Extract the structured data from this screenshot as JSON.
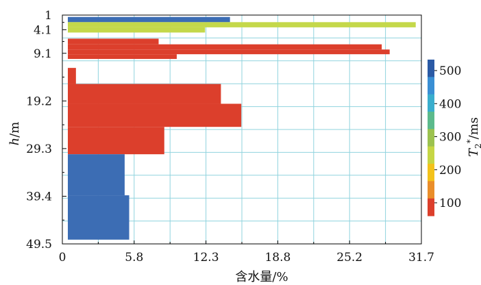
{
  "chart_data": {
    "type": "bar",
    "orientation": "horizontal",
    "xlabel": "含水量/%",
    "ylabel_italic": "h",
    "ylabel_rest": "/m",
    "xticks": [
      "0",
      "5.8",
      "12.3",
      "18.8",
      "25.2",
      "31.7"
    ],
    "xlim": [
      0,
      31.7
    ],
    "yticks": [
      "1",
      "4.1",
      "9.1",
      "19.2",
      "29.3",
      "39.4",
      "49.5"
    ],
    "ylim": [
      1,
      49.5
    ],
    "grid": true,
    "bars": [
      {
        "y0": 1.4,
        "y1": 2.5,
        "value": 14.8,
        "color": "#3c6db4",
        "t2": 500
      },
      {
        "y0": 2.5,
        "y1": 3.6,
        "value": 31.2,
        "color": "#c4d84a",
        "t2": 250
      },
      {
        "y0": 3.6,
        "y1": 4.7,
        "value": 12.6,
        "color": "#c4d84a",
        "t2": 250
      },
      {
        "y0": 6.0,
        "y1": 7.2,
        "value": 8.5,
        "color": "#dc3f2c",
        "t2": 100
      },
      {
        "y0": 7.2,
        "y1": 8.3,
        "value": 28.2,
        "color": "#dc3f2c",
        "t2": 100
      },
      {
        "y0": 8.3,
        "y1": 9.3,
        "value": 28.9,
        "color": "#dc3f2c",
        "t2": 100
      },
      {
        "y0": 9.3,
        "y1": 10.3,
        "value": 10.1,
        "color": "#dc3f2c",
        "t2": 100
      },
      {
        "y0": 12.2,
        "y1": 15.6,
        "value": 1.2,
        "color": "#dc3f2c",
        "t2": 100
      },
      {
        "y0": 15.6,
        "y1": 19.8,
        "value": 14.0,
        "color": "#dc3f2c",
        "t2": 100
      },
      {
        "y0": 19.8,
        "y1": 24.7,
        "value": 15.8,
        "color": "#dc3f2c",
        "t2": 100
      },
      {
        "y0": 24.7,
        "y1": 30.5,
        "value": 9.0,
        "color": "#dc3f2c",
        "t2": 100
      },
      {
        "y0": 30.5,
        "y1": 39.2,
        "value": 5.5,
        "color": "#3c6db4",
        "t2": 500
      },
      {
        "y0": 39.2,
        "y1": 48.6,
        "value": 5.9,
        "color": "#3c6db4",
        "t2": 500
      }
    ],
    "colorbar": {
      "label_T": "T",
      "label_sub": "2",
      "label_sup": "*",
      "label_rest": "/ms",
      "ticks": [
        "500",
        "400",
        "300",
        "200",
        "100"
      ],
      "colors": [
        "#2b5aa5",
        "#3a8fd4",
        "#3aaecd",
        "#5cba8c",
        "#9cc24f",
        "#c6d645",
        "#f3c21b",
        "#ea8e2a",
        "#dc3f2c"
      ]
    }
  }
}
